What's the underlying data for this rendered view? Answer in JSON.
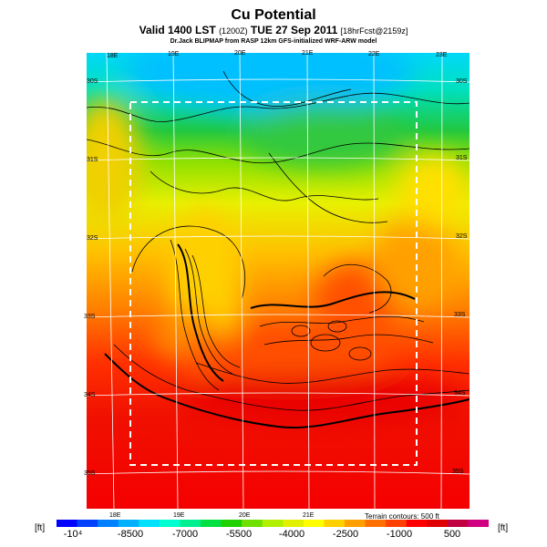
{
  "title": "Cu Potential",
  "subtitle_main": "Valid 1400 LST",
  "subtitle_small1": "(1200Z)",
  "subtitle_date": "TUE 27 Sep 2011",
  "subtitle_small2": "[18hrFcst@2159z]",
  "source_line": "Dr.Jack BLIPMAP from RASP 12km GFS-initialized WRF-ARW model",
  "terrain_note": "Terrain contours: 500 ft",
  "unit_left": "[ft]",
  "unit_right": "[ft]",
  "top_lon_labels": [
    "18E",
    "19E",
    "20E",
    "21E",
    "22E",
    "23E"
  ],
  "bottom_lon_labels": [
    "18E",
    "19E",
    "20E",
    "21E"
  ],
  "left_lat_labels": [
    "30S",
    "31S",
    "32S",
    "33S",
    "34S",
    "35S"
  ],
  "right_lat_labels": [
    "30S",
    "31S",
    "32S",
    "33S",
    "34S",
    "35S"
  ],
  "colorbar": {
    "labels": [
      "-10⁴",
      "-8500",
      "-7000",
      "-5500",
      "-4000",
      "-2500",
      "-1000",
      "500"
    ],
    "colors": [
      "#0000ff",
      "#0040ff",
      "#0080ff",
      "#00b0ff",
      "#00e0ff",
      "#00ffd0",
      "#00f090",
      "#00e040",
      "#20d000",
      "#70e000",
      "#b0f000",
      "#e0f000",
      "#ffff00",
      "#ffd000",
      "#ffa000",
      "#ff7000",
      "#ff4000",
      "#ff0000",
      "#e00000",
      "#c00040",
      "#d00080"
    ]
  }
}
